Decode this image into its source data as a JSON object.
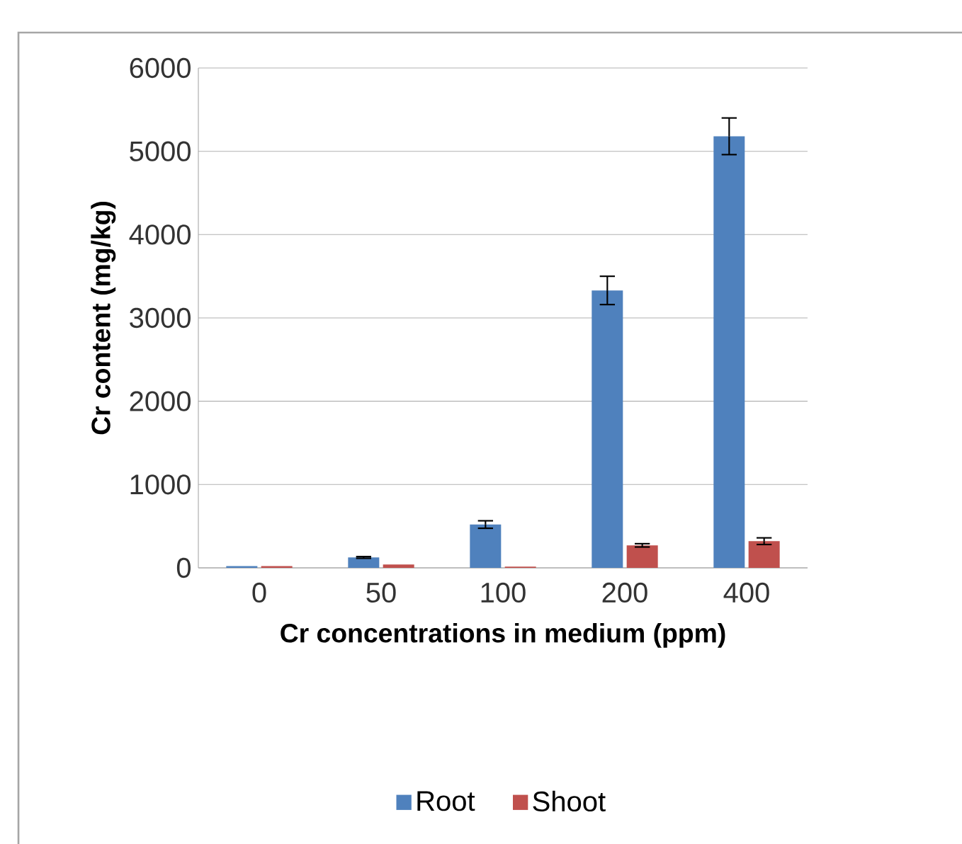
{
  "chart_data": {
    "type": "bar",
    "xlabel": "Cr concentrations in medium (ppm)",
    "ylabel": "Cr content (mg/kg)",
    "categories": [
      "0",
      "50",
      "100",
      "200",
      "400"
    ],
    "series": [
      {
        "name": "Root",
        "color": "#4f81bd",
        "values": [
          20,
          125,
          520,
          3330,
          5180
        ],
        "errors": [
          null,
          10,
          45,
          170,
          220
        ]
      },
      {
        "name": "Shoot",
        "color": "#c0504d",
        "values": [
          20,
          40,
          15,
          270,
          320
        ],
        "errors": [
          null,
          null,
          null,
          20,
          40
        ]
      }
    ],
    "ylim": [
      0,
      6000
    ],
    "yticks": [
      0,
      1000,
      2000,
      3000,
      4000,
      5000,
      6000
    ],
    "grid": "y",
    "legend": "bottom"
  }
}
